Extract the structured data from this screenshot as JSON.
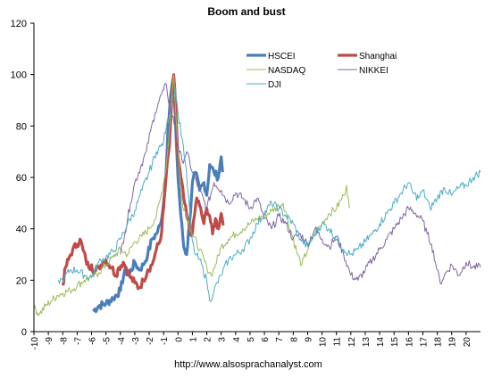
{
  "chart_data": {
    "type": "line",
    "title": "Boom and bust",
    "xlabel": "",
    "ylabel": "",
    "xlim": [
      -10,
      21
    ],
    "ylim": [
      0,
      120
    ],
    "x_ticks": [
      "-10",
      "-9",
      "-8",
      "-7",
      "-6",
      "-5",
      "-4",
      "-3",
      "-2",
      "-1",
      "0",
      "1",
      "2",
      "3",
      "4",
      "5",
      "6",
      "7",
      "8",
      "9",
      "10",
      "11",
      "12",
      "13",
      "14",
      "15",
      "16",
      "17",
      "18",
      "19",
      "20"
    ],
    "y_ticks": [
      "0",
      "20",
      "40",
      "60",
      "80",
      "100",
      "120"
    ],
    "grid": false,
    "legend_position": "top-center (inside plot)",
    "footer": "http://www.alsosprachanalyst.com",
    "series": [
      {
        "name": "HSCEI",
        "color": "#4a7ebb",
        "width": 3.2,
        "points": [
          [
            -5.9,
            8
          ],
          [
            -5.5,
            10
          ],
          [
            -5,
            11
          ],
          [
            -4.5,
            13
          ],
          [
            -4,
            16
          ],
          [
            -3.7,
            24
          ],
          [
            -3.4,
            22
          ],
          [
            -3,
            27
          ],
          [
            -2.7,
            24
          ],
          [
            -2.4,
            26
          ],
          [
            -2.1,
            30
          ],
          [
            -1.8,
            36
          ],
          [
            -1.5,
            38
          ],
          [
            -1.2,
            42
          ],
          [
            -0.9,
            55
          ],
          [
            -0.7,
            78
          ],
          [
            -0.5,
            92
          ],
          [
            -0.35,
            98
          ],
          [
            -0.2,
            85
          ],
          [
            0,
            60
          ],
          [
            0.2,
            45
          ],
          [
            0.4,
            33
          ],
          [
            0.6,
            30
          ],
          [
            0.8,
            42
          ],
          [
            1,
            58
          ],
          [
            1.2,
            62
          ],
          [
            1.5,
            55
          ],
          [
            1.8,
            58
          ],
          [
            2,
            53
          ],
          [
            2.2,
            65
          ],
          [
            2.5,
            62
          ],
          [
            2.8,
            60
          ],
          [
            3,
            68
          ],
          [
            3.1,
            62
          ]
        ]
      },
      {
        "name": "Shanghai",
        "color": "#be4b48",
        "width": 3.2,
        "points": [
          [
            -8,
            18
          ],
          [
            -7.8,
            25
          ],
          [
            -7.6,
            28
          ],
          [
            -7.3,
            32
          ],
          [
            -7,
            34
          ],
          [
            -6.8,
            36
          ],
          [
            -6.6,
            32
          ],
          [
            -6.4,
            28
          ],
          [
            -6.2,
            25
          ],
          [
            -6,
            26
          ],
          [
            -5.8,
            23
          ],
          [
            -5.5,
            25
          ],
          [
            -5.2,
            27
          ],
          [
            -5,
            28
          ],
          [
            -4.8,
            26
          ],
          [
            -4.6,
            25
          ],
          [
            -4.3,
            22
          ],
          [
            -4.1,
            25
          ],
          [
            -3.8,
            27
          ],
          [
            -3.6,
            25
          ],
          [
            -3.3,
            21
          ],
          [
            -3,
            19
          ],
          [
            -2.7,
            17
          ],
          [
            -2.4,
            20
          ],
          [
            -2.1,
            24
          ],
          [
            -1.8,
            26
          ],
          [
            -1.5,
            32
          ],
          [
            -1.2,
            36
          ],
          [
            -1,
            48
          ],
          [
            -0.8,
            62
          ],
          [
            -0.6,
            72
          ],
          [
            -0.45,
            88
          ],
          [
            -0.3,
            100
          ],
          [
            -0.15,
            86
          ],
          [
            0,
            68
          ],
          [
            0.2,
            60
          ],
          [
            0.4,
            52
          ],
          [
            0.6,
            45
          ],
          [
            0.8,
            40
          ],
          [
            1,
            38
          ],
          [
            1.3,
            52
          ],
          [
            1.5,
            49
          ],
          [
            1.8,
            42
          ],
          [
            2,
            48
          ],
          [
            2.2,
            45
          ],
          [
            2.4,
            38
          ],
          [
            2.6,
            44
          ],
          [
            2.8,
            40
          ],
          [
            3,
            46
          ],
          [
            3.2,
            42
          ]
        ]
      },
      {
        "name": "NASDAQ",
        "color": "#9bbb59",
        "width": 1,
        "points": [
          [
            -10,
            9
          ],
          [
            -9.6,
            7
          ],
          [
            -9.2,
            10
          ],
          [
            -8.8,
            12
          ],
          [
            -8.4,
            14
          ],
          [
            -8,
            15
          ],
          [
            -7.5,
            16
          ],
          [
            -7,
            18
          ],
          [
            -6.5,
            20
          ],
          [
            -6,
            21
          ],
          [
            -5.5,
            23
          ],
          [
            -5,
            26
          ],
          [
            -4.5,
            29
          ],
          [
            -4,
            32
          ],
          [
            -3.5,
            30
          ],
          [
            -3,
            35
          ],
          [
            -2.5,
            37
          ],
          [
            -2,
            40
          ],
          [
            -1.5,
            45
          ],
          [
            -1.2,
            52
          ],
          [
            -1,
            58
          ],
          [
            -0.8,
            65
          ],
          [
            -0.6,
            78
          ],
          [
            -0.45,
            90
          ],
          [
            -0.3,
            100
          ],
          [
            -0.1,
            80
          ],
          [
            0.1,
            62
          ],
          [
            0.3,
            50
          ],
          [
            0.6,
            45
          ],
          [
            1,
            38
          ],
          [
            1.5,
            32
          ],
          [
            2,
            25
          ],
          [
            2.3,
            22
          ],
          [
            2.6,
            26
          ],
          [
            3,
            33
          ],
          [
            3.5,
            36
          ],
          [
            4,
            38
          ],
          [
            4.5,
            40
          ],
          [
            5,
            42
          ],
          [
            5.5,
            44
          ],
          [
            6,
            45
          ],
          [
            6.5,
            47
          ],
          [
            7,
            49
          ],
          [
            7.3,
            50
          ],
          [
            7.6,
            44
          ],
          [
            7.9,
            38
          ],
          [
            8.3,
            30
          ],
          [
            8.6,
            26
          ],
          [
            9,
            32
          ],
          [
            9.5,
            38
          ],
          [
            10,
            42
          ],
          [
            10.5,
            46
          ],
          [
            11,
            48
          ],
          [
            11.5,
            53
          ],
          [
            11.7,
            57
          ],
          [
            11.9,
            48
          ]
        ]
      },
      {
        "name": "NIKKEI",
        "color": "#8064a2",
        "width": 1,
        "points": [
          [
            -4,
            30
          ],
          [
            -3.7,
            38
          ],
          [
            -3.3,
            50
          ],
          [
            -3,
            58
          ],
          [
            -2.6,
            64
          ],
          [
            -2.2,
            70
          ],
          [
            -1.9,
            78
          ],
          [
            -1.6,
            85
          ],
          [
            -1.3,
            90
          ],
          [
            -1,
            94
          ],
          [
            -0.8,
            96
          ],
          [
            -0.6,
            88
          ],
          [
            -0.4,
            84
          ],
          [
            -0.2,
            80
          ],
          [
            0,
            72
          ],
          [
            0.3,
            66
          ],
          [
            0.6,
            70
          ],
          [
            1,
            62
          ],
          [
            1.5,
            55
          ],
          [
            2,
            48
          ],
          [
            2.5,
            58
          ],
          [
            3,
            55
          ],
          [
            3.5,
            50
          ],
          [
            4,
            54
          ],
          [
            4.5,
            52
          ],
          [
            5,
            48
          ],
          [
            5.5,
            52
          ],
          [
            6,
            44
          ],
          [
            6.5,
            40
          ],
          [
            7,
            45
          ],
          [
            7.5,
            42
          ],
          [
            8,
            36
          ],
          [
            8.5,
            38
          ],
          [
            9,
            34
          ],
          [
            9.5,
            40
          ],
          [
            10,
            36
          ],
          [
            10.5,
            33
          ],
          [
            11,
            37
          ],
          [
            11.5,
            30
          ],
          [
            12,
            22
          ],
          [
            12.5,
            20
          ],
          [
            13,
            24
          ],
          [
            13.5,
            28
          ],
          [
            14,
            32
          ],
          [
            14.5,
            36
          ],
          [
            15,
            40
          ],
          [
            15.5,
            44
          ],
          [
            16,
            48
          ],
          [
            16.5,
            46
          ],
          [
            17,
            43
          ],
          [
            17.3,
            38
          ],
          [
            17.6,
            34
          ],
          [
            18,
            24
          ],
          [
            18.2,
            19
          ],
          [
            18.5,
            22
          ],
          [
            19,
            26
          ],
          [
            19.5,
            22
          ],
          [
            20,
            27
          ],
          [
            20.5,
            25
          ],
          [
            21,
            25
          ]
        ]
      },
      {
        "name": "DJI",
        "color": "#4bacc6",
        "width": 1,
        "points": [
          [
            -8.3,
            20
          ],
          [
            -8,
            20
          ],
          [
            -7.5,
            24
          ],
          [
            -7,
            24
          ],
          [
            -6.5,
            22
          ],
          [
            -6,
            21
          ],
          [
            -5.5,
            27
          ],
          [
            -5,
            29
          ],
          [
            -4.5,
            31
          ],
          [
            -4,
            36
          ],
          [
            -3.5,
            42
          ],
          [
            -3,
            47
          ],
          [
            -2.5,
            55
          ],
          [
            -2,
            62
          ],
          [
            -1.5,
            70
          ],
          [
            -1.2,
            72
          ],
          [
            -1,
            74
          ],
          [
            -0.8,
            80
          ],
          [
            -0.6,
            84
          ],
          [
            -0.4,
            90
          ],
          [
            -0.2,
            95
          ],
          [
            0,
            85
          ],
          [
            0.3,
            75
          ],
          [
            0.5,
            66
          ],
          [
            0.8,
            48
          ],
          [
            1,
            35
          ],
          [
            1.2,
            30
          ],
          [
            1.5,
            28
          ],
          [
            2,
            20
          ],
          [
            2.2,
            12
          ],
          [
            2.5,
            16
          ],
          [
            3,
            22
          ],
          [
            3.5,
            28
          ],
          [
            4,
            30
          ],
          [
            4.5,
            32
          ],
          [
            5,
            36
          ],
          [
            5.5,
            42
          ],
          [
            6,
            46
          ],
          [
            6.5,
            50
          ],
          [
            7,
            48
          ],
          [
            7.5,
            45
          ],
          [
            8,
            42
          ],
          [
            8.5,
            36
          ],
          [
            9,
            33
          ],
          [
            9.5,
            38
          ],
          [
            10,
            42
          ],
          [
            10.5,
            40
          ],
          [
            11,
            36
          ],
          [
            11.5,
            32
          ],
          [
            12,
            30
          ],
          [
            12.5,
            32
          ],
          [
            13,
            35
          ],
          [
            13.5,
            38
          ],
          [
            14,
            42
          ],
          [
            14.5,
            46
          ],
          [
            15,
            50
          ],
          [
            15.5,
            54
          ],
          [
            16,
            58
          ],
          [
            16.3,
            54
          ],
          [
            16.7,
            52
          ],
          [
            17,
            55
          ],
          [
            17.5,
            48
          ],
          [
            18,
            52
          ],
          [
            18.5,
            56
          ],
          [
            19,
            53
          ],
          [
            19.5,
            56
          ],
          [
            20,
            57
          ],
          [
            20.5,
            60
          ],
          [
            21,
            62
          ]
        ]
      }
    ]
  }
}
